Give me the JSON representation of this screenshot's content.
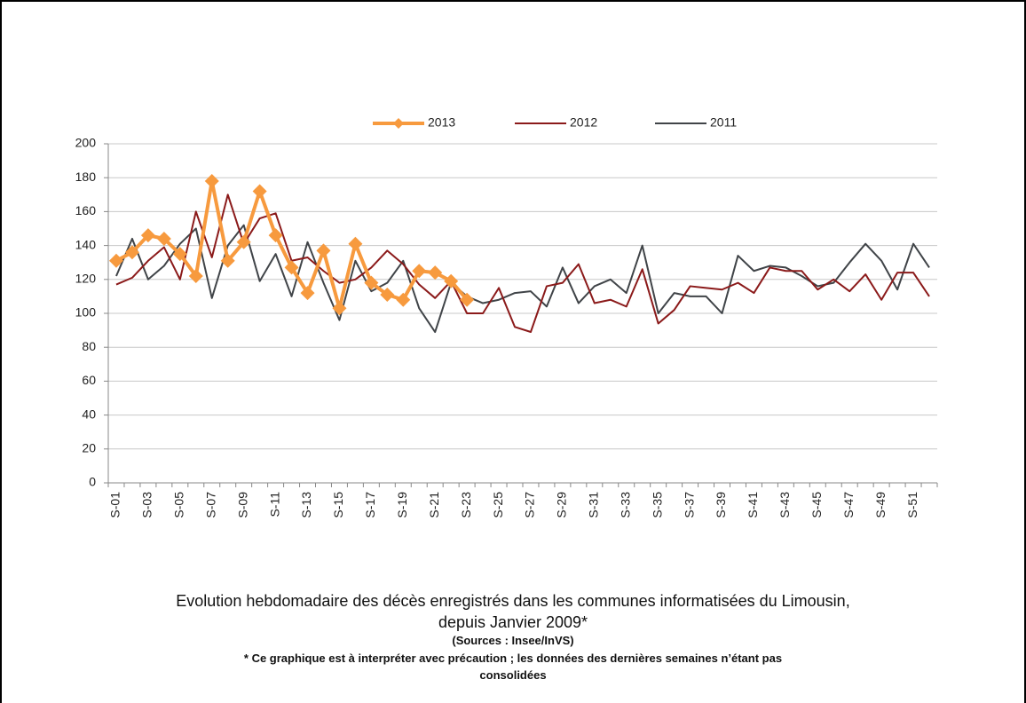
{
  "chart_data": {
    "type": "line",
    "title": "Evolution hebdomadaire des décès enregistrés dans les communes informatisées du Limousin, depuis Janvier  2009*",
    "sources": "(Sources : Insee/InVS)",
    "footnote": "* Ce graphique est à interpréter avec précaution ; les données des dernières semaines n’étant pas consolidées",
    "categories": [
      "S-01",
      null,
      "S-03",
      null,
      "S-05",
      null,
      "S-07",
      null,
      "S-09",
      null,
      "S-11",
      null,
      "S-13",
      null,
      "S-15",
      null,
      "S-17",
      null,
      "S-19",
      null,
      "S-21",
      null,
      "S-23",
      null,
      "S-25",
      null,
      "S-27",
      null,
      "S-29",
      null,
      "S-31",
      null,
      "S-33",
      null,
      "S-35",
      null,
      "S-37",
      null,
      "S-39",
      null,
      "S-41",
      null,
      "S-43",
      null,
      "S-45",
      null,
      "S-47",
      null,
      "S-49",
      null,
      "S-51",
      null
    ],
    "series": [
      {
        "name": "2013",
        "color": "#f79a3e",
        "marker": "diamond",
        "values": [
          131,
          136,
          146,
          144,
          135,
          122,
          178,
          131,
          142,
          172,
          146,
          127,
          112,
          137,
          103,
          141,
          118,
          111,
          108,
          125,
          124,
          119,
          108,
          null,
          null,
          null,
          null,
          null,
          null,
          null,
          null,
          null,
          null,
          null,
          null,
          null,
          null,
          null,
          null,
          null,
          null,
          null,
          null,
          null,
          null,
          null,
          null,
          null,
          null,
          null,
          null,
          null
        ]
      },
      {
        "name": "2012",
        "color": "#8b1a1a",
        "values": [
          117,
          121,
          131,
          139,
          120,
          160,
          133,
          170,
          141,
          156,
          159,
          131,
          133,
          125,
          118,
          120,
          127,
          137,
          129,
          117,
          109,
          119,
          100,
          100,
          115,
          92,
          89,
          116,
          118,
          129,
          106,
          108,
          104,
          126,
          94,
          102,
          116,
          115,
          114,
          118,
          112,
          127,
          125,
          125,
          114,
          120,
          113,
          123,
          108,
          124,
          124,
          110
        ]
      },
      {
        "name": "2011",
        "color": "#404448",
        "values": [
          122,
          144,
          120,
          128,
          141,
          150,
          109,
          140,
          152,
          119,
          135,
          110,
          142,
          118,
          96,
          131,
          113,
          118,
          131,
          103,
          89,
          118,
          110,
          106,
          108,
          112,
          113,
          104,
          127,
          106,
          116,
          120,
          112,
          140,
          100,
          112,
          110,
          110,
          100,
          134,
          125,
          128,
          127,
          122,
          116,
          118,
          130,
          141,
          131,
          114,
          141,
          127
        ]
      }
    ],
    "ylim": [
      0,
      200
    ],
    "yticks": [
      0,
      20,
      40,
      60,
      80,
      100,
      120,
      140,
      160,
      180,
      200
    ],
    "grid": true
  }
}
